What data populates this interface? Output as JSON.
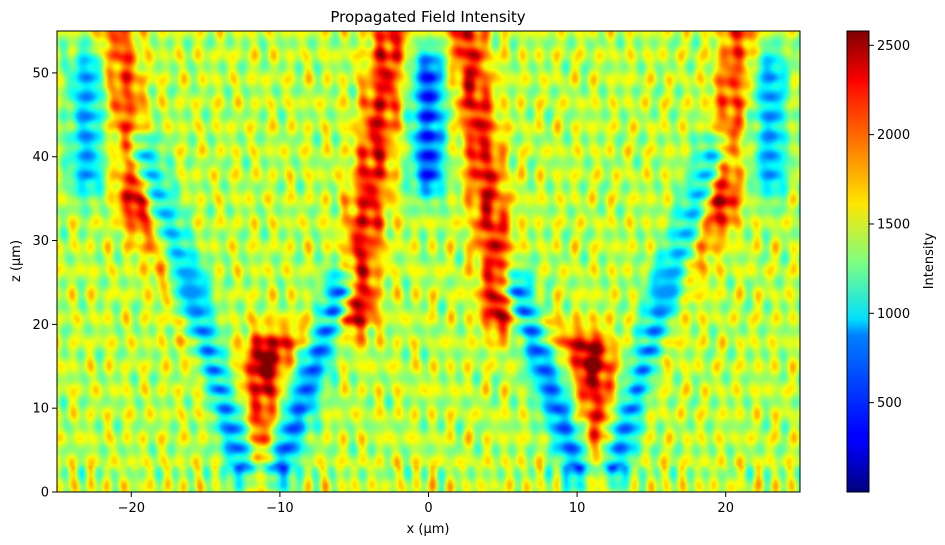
{
  "chart_data": {
    "type": "heatmap",
    "title": "Propagated Field Intensity",
    "xlabel": "x (µm)",
    "ylabel": "z (µm)",
    "xlim": [
      -25,
      25
    ],
    "ylim": [
      0,
      55
    ],
    "x_ticks": [
      -20,
      -10,
      0,
      10,
      20
    ],
    "y_ticks": [
      0,
      10,
      20,
      30,
      40,
      50
    ],
    "colormap": "jet",
    "colorbar": {
      "label": "Intensity",
      "range": [
        0,
        2580
      ],
      "ticks": [
        500,
        1000,
        1500,
        2000,
        2500
      ]
    },
    "features": {
      "background_intensity": 1450,
      "high_intensity_beams": [
        {
          "x_start": -11.5,
          "z_start": 2,
          "x_end": -11,
          "z_end": 16,
          "peak": 2300
        },
        {
          "x_start": -11,
          "z_start": 16,
          "x_end": -5,
          "z_end": 22,
          "peak": 2050
        },
        {
          "x_start": -5,
          "z_start": 22,
          "x_end": -2.5,
          "z_end": 55,
          "peak": 2400
        },
        {
          "x_start": 11.5,
          "z_start": 2,
          "x_end": 11,
          "z_end": 16,
          "peak": 2300
        },
        {
          "x_start": 11,
          "z_start": 16,
          "x_end": 5,
          "z_end": 22,
          "peak": 2050
        },
        {
          "x_start": 5,
          "z_start": 22,
          "x_end": 2.5,
          "z_end": 55,
          "peak": 2400
        },
        {
          "x_start": -14,
          "z_start": 12,
          "x_end": -19.5,
          "z_end": 35,
          "peak": 2100
        },
        {
          "x_start": -19.5,
          "z_start": 35,
          "x_end": -21,
          "z_end": 55,
          "peak": 2200
        },
        {
          "x_start": 14,
          "z_start": 12,
          "x_end": 19.5,
          "z_end": 35,
          "peak": 2100
        },
        {
          "x_start": 19.5,
          "z_start": 35,
          "x_end": 21,
          "z_end": 55,
          "peak": 2200
        }
      ],
      "low_intensity_channels": [
        {
          "x_start": -10,
          "z_start": 3,
          "x_end": -6,
          "z_end": 24,
          "min": 450
        },
        {
          "x_start": 10,
          "z_start": 3,
          "x_end": 6,
          "z_end": 24,
          "min": 450
        },
        {
          "x_start": -12.5,
          "z_start": 3,
          "x_end": -16,
          "z_end": 24,
          "min": 500
        },
        {
          "x_start": 12.5,
          "z_start": 3,
          "x_end": 16,
          "z_end": 24,
          "min": 500
        },
        {
          "x_start": -16,
          "z_start": 24,
          "x_end": -19,
          "z_end": 40,
          "min": 700
        },
        {
          "x_start": 16,
          "z_start": 24,
          "x_end": 19,
          "z_end": 40,
          "min": 700
        },
        {
          "x_start": 0,
          "z_start": 38,
          "x_end": 0,
          "z_end": 50,
          "min": 250
        },
        {
          "x_start": -23,
          "z_start": 38,
          "x_end": -23,
          "z_end": 50,
          "min": 600
        },
        {
          "x_start": 23,
          "z_start": 38,
          "x_end": 23,
          "z_end": 50,
          "min": 600
        }
      ]
    }
  }
}
